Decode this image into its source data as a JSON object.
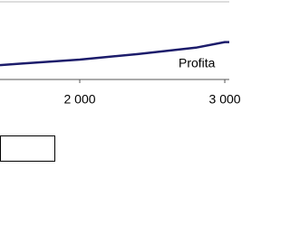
{
  "chart_data": {
    "type": "line",
    "annotation": "Profita",
    "x": [
      1450,
      1600,
      2000,
      2400,
      2800,
      3000,
      3031
    ],
    "series": [
      {
        "color": "#1c1c6b",
        "values": [
          18,
          20,
          25,
          32,
          40,
          47,
          47
        ]
      }
    ],
    "xlim": [
      1450,
      3031
    ],
    "xticks": [
      {
        "value": 2000,
        "label": "2 000"
      },
      {
        "value": 3000,
        "label": "3 000"
      }
    ],
    "ylim": [
      0,
      100
    ]
  }
}
